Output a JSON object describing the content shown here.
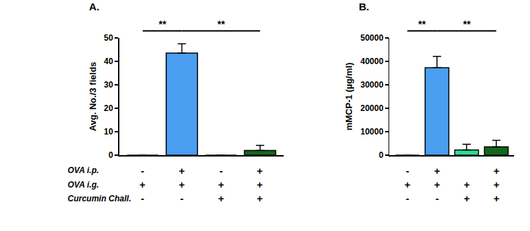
{
  "chart_data": [
    {
      "type": "bar",
      "title": "A.",
      "ylabel": "Avg. No./3 fields",
      "categories": [
        null,
        null,
        null,
        null
      ],
      "values": [
        0,
        43.5,
        0,
        2
      ],
      "errors": [
        0,
        4,
        0,
        2.2
      ],
      "colors": [
        "#4a9ff0",
        "#4a9ff0",
        "#2fd996",
        "#13661a"
      ],
      "ylim": [
        0,
        50
      ],
      "yticks": [
        0,
        10,
        20,
        30,
        40,
        50
      ],
      "grid": false,
      "tick_labels": "y",
      "brackets": [
        {
          "from": 0,
          "to": 1,
          "label": "**"
        },
        {
          "from": 1,
          "to": 3,
          "label": "**"
        }
      ],
      "treatments": [
        {
          "label": "OVA i.p.",
          "signs": [
            "-",
            "+",
            "-",
            "+"
          ]
        },
        {
          "label": "OVA i.g.",
          "signs": [
            "+",
            "+",
            "+",
            "+"
          ]
        },
        {
          "label": "Curcumin Chall.",
          "signs": [
            "-",
            "-",
            "+",
            "+"
          ]
        }
      ]
    },
    {
      "type": "bar",
      "title": "B.",
      "ylabel": "mMCP-1 (µg/ml)",
      "categories": [
        null,
        null,
        null,
        null
      ],
      "values": [
        0,
        37300,
        2200,
        3500
      ],
      "errors": [
        0,
        4800,
        2400,
        2800
      ],
      "colors": [
        "#4a9ff0",
        "#4a9ff0",
        "#2fd996",
        "#13661a"
      ],
      "ylim": [
        0,
        50000
      ],
      "yticks": [
        0,
        10000,
        20000,
        30000,
        40000,
        50000
      ],
      "grid": false,
      "tick_labels": "y",
      "brackets": [
        {
          "from": 0,
          "to": 1,
          "label": "**"
        },
        {
          "from": 1,
          "to": 3,
          "label": "**"
        }
      ],
      "treatments": [
        {
          "label": null,
          "signs": [
            "-",
            "+",
            null,
            "+"
          ]
        },
        {
          "label": null,
          "signs": [
            "+",
            "+",
            "+",
            "+"
          ]
        },
        {
          "label": null,
          "signs": [
            "-",
            "-",
            "+",
            "+"
          ]
        }
      ]
    }
  ]
}
